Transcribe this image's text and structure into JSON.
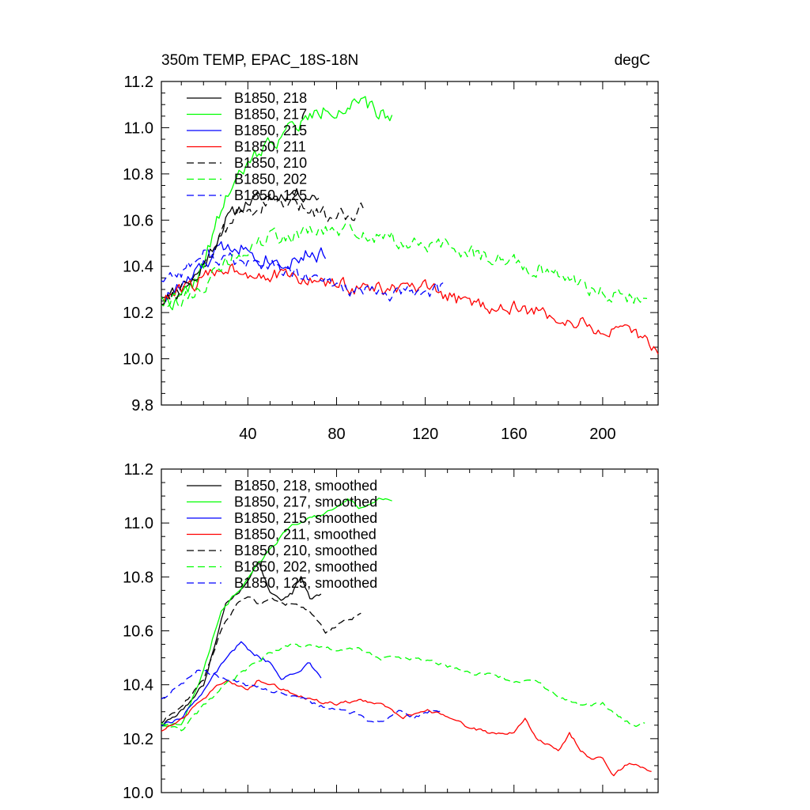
{
  "chart_data": [
    {
      "type": "line",
      "title": "350m TEMP, EPAC_18S-18N",
      "units": "degC",
      "xlim": [
        1,
        225
      ],
      "ylim": [
        9.8,
        11.2
      ],
      "xticks": [
        40,
        80,
        120,
        160,
        200
      ],
      "yticks": [
        9.8,
        10.0,
        10.2,
        10.4,
        10.6,
        10.8,
        11.0,
        11.2
      ],
      "ytick_labels": [
        "9.8",
        "10.0",
        "10.2",
        "10.4",
        "10.6",
        "10.8",
        "11.0",
        "11.2"
      ],
      "legend_position": "top-left",
      "grid": false,
      "series": [
        {
          "name": "B1850, 218",
          "color": "#000000",
          "dash": "solid",
          "length": 72,
          "anchors": [
            [
              1,
              10.28
            ],
            [
              10,
              10.3
            ],
            [
              20,
              10.4
            ],
            [
              30,
              10.6
            ],
            [
              40,
              10.68
            ],
            [
              50,
              10.7
            ],
            [
              60,
              10.72
            ],
            [
              72,
              10.7
            ]
          ],
          "noise": 0.05,
          "seed": 11
        },
        {
          "name": "B1850, 217",
          "color": "#00ff00",
          "dash": "solid",
          "length": 105,
          "anchors": [
            [
              1,
              10.25
            ],
            [
              10,
              10.25
            ],
            [
              20,
              10.4
            ],
            [
              30,
              10.7
            ],
            [
              45,
              10.9
            ],
            [
              60,
              11.0
            ],
            [
              75,
              11.08
            ],
            [
              90,
              11.1
            ],
            [
              105,
              11.04
            ]
          ],
          "noise": 0.06,
          "seed": 22
        },
        {
          "name": "B1850, 215",
          "color": "#0000ff",
          "dash": "solid",
          "length": 75,
          "anchors": [
            [
              1,
              10.25
            ],
            [
              15,
              10.35
            ],
            [
              25,
              10.45
            ],
            [
              35,
              10.5
            ],
            [
              45,
              10.45
            ],
            [
              55,
              10.42
            ],
            [
              65,
              10.45
            ],
            [
              75,
              10.45
            ]
          ],
          "noise": 0.06,
          "seed": 33
        },
        {
          "name": "B1850, 211",
          "color": "#ff0000",
          "dash": "solid",
          "length": 225,
          "anchors": [
            [
              1,
              10.25
            ],
            [
              15,
              10.32
            ],
            [
              30,
              10.4
            ],
            [
              40,
              10.38
            ],
            [
              60,
              10.35
            ],
            [
              80,
              10.32
            ],
            [
              100,
              10.3
            ],
            [
              120,
              10.3
            ],
            [
              140,
              10.24
            ],
            [
              160,
              10.22
            ],
            [
              180,
              10.18
            ],
            [
              200,
              10.12
            ],
            [
              215,
              10.1
            ],
            [
              225,
              10.05
            ]
          ],
          "noise": 0.055,
          "seed": 44
        },
        {
          "name": "B1850, 210",
          "color": "#000000",
          "dash": "dashed",
          "length": 92,
          "anchors": [
            [
              1,
              10.25
            ],
            [
              15,
              10.35
            ],
            [
              25,
              10.48
            ],
            [
              35,
              10.62
            ],
            [
              50,
              10.68
            ],
            [
              65,
              10.65
            ],
            [
              80,
              10.62
            ],
            [
              92,
              10.65
            ]
          ],
          "noise": 0.06,
          "seed": 55
        },
        {
          "name": "B1850, 202",
          "color": "#00ff00",
          "dash": "dashed",
          "length": 220,
          "anchors": [
            [
              1,
              10.28
            ],
            [
              10,
              10.25
            ],
            [
              20,
              10.32
            ],
            [
              35,
              10.45
            ],
            [
              50,
              10.52
            ],
            [
              70,
              10.55
            ],
            [
              90,
              10.55
            ],
            [
              110,
              10.5
            ],
            [
              130,
              10.48
            ],
            [
              150,
              10.44
            ],
            [
              170,
              10.4
            ],
            [
              190,
              10.32
            ],
            [
              205,
              10.28
            ],
            [
              220,
              10.25
            ]
          ],
          "noise": 0.06,
          "seed": 66
        },
        {
          "name": "B1850, 125",
          "color": "#0000ff",
          "dash": "dashed",
          "length": 128,
          "anchors": [
            [
              1,
              10.35
            ],
            [
              10,
              10.38
            ],
            [
              20,
              10.45
            ],
            [
              35,
              10.42
            ],
            [
              50,
              10.4
            ],
            [
              65,
              10.35
            ],
            [
              80,
              10.32
            ],
            [
              95,
              10.28
            ],
            [
              110,
              10.28
            ],
            [
              128,
              10.3
            ]
          ],
          "noise": 0.055,
          "seed": 77
        }
      ]
    },
    {
      "type": "line",
      "title": "",
      "xlim": [
        1,
        225
      ],
      "ylim": [
        10.0,
        11.2
      ],
      "xticks": [
        40,
        80,
        120,
        160,
        200
      ],
      "yticks": [
        10.0,
        10.2,
        10.4,
        10.6,
        10.8,
        11.0,
        11.2
      ],
      "ytick_labels": [
        "10.0",
        "10.2",
        "10.4",
        "10.6",
        "10.8",
        "11.0",
        "11.2"
      ],
      "legend_position": "top-left",
      "grid": false,
      "series": [
        {
          "name": "B1850, 218, smoothed",
          "color": "#000000",
          "dash": "solid",
          "length": 73,
          "anchors": [
            [
              1,
              10.25
            ],
            [
              10,
              10.3
            ],
            [
              20,
              10.4
            ],
            [
              30,
              10.7
            ],
            [
              40,
              10.78
            ],
            [
              45,
              10.86
            ],
            [
              50,
              10.74
            ],
            [
              55,
              10.72
            ],
            [
              60,
              10.74
            ],
            [
              64,
              10.8
            ],
            [
              68,
              10.72
            ],
            [
              73,
              10.74
            ]
          ],
          "noise": 0.012,
          "seed": 111
        },
        {
          "name": "B1850, 217, smoothed",
          "color": "#00ff00",
          "dash": "solid",
          "length": 105,
          "anchors": [
            [
              1,
              10.25
            ],
            [
              10,
              10.25
            ],
            [
              20,
              10.45
            ],
            [
              28,
              10.68
            ],
            [
              35,
              10.74
            ],
            [
              45,
              10.85
            ],
            [
              55,
              10.95
            ],
            [
              60,
              11.0
            ],
            [
              70,
              11.02
            ],
            [
              80,
              11.05
            ],
            [
              85,
              11.09
            ],
            [
              90,
              11.06
            ],
            [
              95,
              11.07
            ],
            [
              100,
              11.09
            ],
            [
              105,
              11.08
            ]
          ],
          "noise": 0.012,
          "seed": 122
        },
        {
          "name": "B1850, 215, smoothed",
          "color": "#0000ff",
          "dash": "solid",
          "length": 73,
          "anchors": [
            [
              1,
              10.25
            ],
            [
              10,
              10.28
            ],
            [
              20,
              10.38
            ],
            [
              30,
              10.5
            ],
            [
              37,
              10.56
            ],
            [
              42,
              10.52
            ],
            [
              50,
              10.48
            ],
            [
              55,
              10.42
            ],
            [
              60,
              10.44
            ],
            [
              68,
              10.48
            ],
            [
              73,
              10.43
            ]
          ],
          "noise": 0.012,
          "seed": 133
        },
        {
          "name": "B1850, 211, smoothed",
          "color": "#ff0000",
          "dash": "solid",
          "length": 222,
          "anchors": [
            [
              1,
              10.23
            ],
            [
              10,
              10.27
            ],
            [
              20,
              10.35
            ],
            [
              30,
              10.42
            ],
            [
              40,
              10.38
            ],
            [
              45,
              10.42
            ],
            [
              60,
              10.37
            ],
            [
              70,
              10.34
            ],
            [
              80,
              10.33
            ],
            [
              90,
              10.34
            ],
            [
              100,
              10.33
            ],
            [
              110,
              10.28
            ],
            [
              120,
              10.31
            ],
            [
              130,
              10.28
            ],
            [
              140,
              10.24
            ],
            [
              150,
              10.22
            ],
            [
              160,
              10.22
            ],
            [
              165,
              10.27
            ],
            [
              170,
              10.2
            ],
            [
              180,
              10.16
            ],
            [
              185,
              10.22
            ],
            [
              190,
              10.16
            ],
            [
              195,
              10.12
            ],
            [
              200,
              10.13
            ],
            [
              205,
              10.06
            ],
            [
              210,
              10.1
            ],
            [
              215,
              10.11
            ],
            [
              222,
              10.08
            ]
          ],
          "noise": 0.01,
          "seed": 144
        },
        {
          "name": "B1850, 210, smoothed",
          "color": "#000000",
          "dash": "dashed",
          "length": 91,
          "anchors": [
            [
              1,
              10.26
            ],
            [
              10,
              10.32
            ],
            [
              20,
              10.42
            ],
            [
              28,
              10.6
            ],
            [
              35,
              10.7
            ],
            [
              40,
              10.73
            ],
            [
              45,
              10.7
            ],
            [
              50,
              10.72
            ],
            [
              55,
              10.7
            ],
            [
              62,
              10.7
            ],
            [
              70,
              10.66
            ],
            [
              75,
              10.59
            ],
            [
              80,
              10.62
            ],
            [
              86,
              10.64
            ],
            [
              91,
              10.67
            ]
          ],
          "noise": 0.012,
          "seed": 155
        },
        {
          "name": "B1850, 202, smoothed",
          "color": "#00ff00",
          "dash": "dashed",
          "length": 219,
          "anchors": [
            [
              1,
              10.26
            ],
            [
              10,
              10.23
            ],
            [
              20,
              10.32
            ],
            [
              30,
              10.4
            ],
            [
              40,
              10.46
            ],
            [
              50,
              10.52
            ],
            [
              60,
              10.55
            ],
            [
              70,
              10.54
            ],
            [
              80,
              10.53
            ],
            [
              90,
              10.53
            ],
            [
              100,
              10.5
            ],
            [
              110,
              10.5
            ],
            [
              120,
              10.49
            ],
            [
              130,
              10.47
            ],
            [
              140,
              10.44
            ],
            [
              150,
              10.44
            ],
            [
              160,
              10.41
            ],
            [
              170,
              10.41
            ],
            [
              180,
              10.36
            ],
            [
              190,
              10.32
            ],
            [
              200,
              10.33
            ],
            [
              210,
              10.27
            ],
            [
              215,
              10.25
            ],
            [
              219,
              10.26
            ]
          ],
          "noise": 0.012,
          "seed": 166
        },
        {
          "name": "B1850, 125, smoothed",
          "color": "#0000ff",
          "dash": "dashed",
          "length": 128,
          "anchors": [
            [
              1,
              10.35
            ],
            [
              10,
              10.4
            ],
            [
              18,
              10.46
            ],
            [
              30,
              10.42
            ],
            [
              40,
              10.4
            ],
            [
              50,
              10.38
            ],
            [
              60,
              10.36
            ],
            [
              70,
              10.33
            ],
            [
              80,
              10.31
            ],
            [
              90,
              10.29
            ],
            [
              95,
              10.26
            ],
            [
              100,
              10.26
            ],
            [
              108,
              10.31
            ],
            [
              115,
              10.28
            ],
            [
              122,
              10.3
            ],
            [
              128,
              10.3
            ]
          ],
          "noise": 0.012,
          "seed": 177
        }
      ]
    }
  ]
}
